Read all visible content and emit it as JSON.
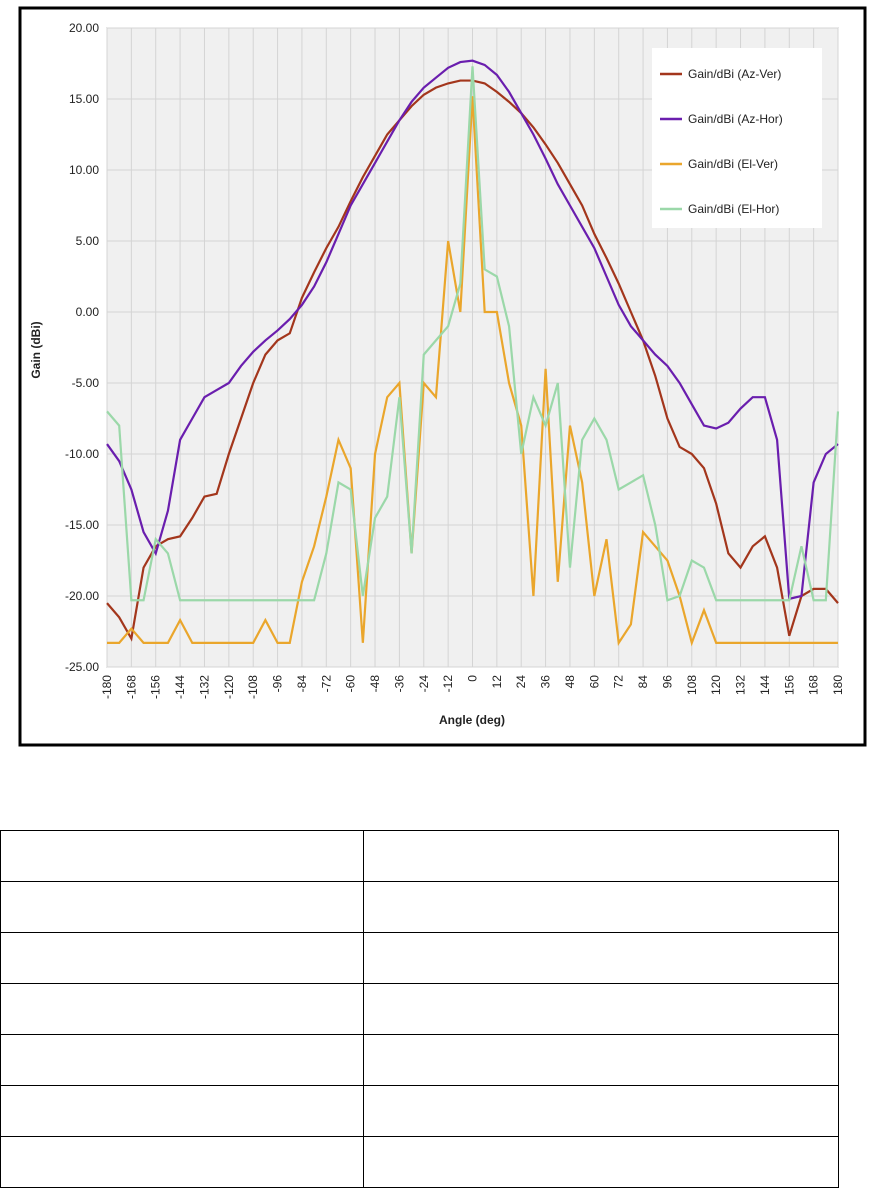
{
  "chart_data": {
    "type": "line",
    "x_label": "Angle (deg)",
    "y_label": "Gain (dBi)",
    "x": [
      -180,
      -174,
      -168,
      -162,
      -156,
      -150,
      -144,
      -138,
      -132,
      -126,
      -120,
      -114,
      -108,
      -102,
      -96,
      -90,
      -84,
      -78,
      -72,
      -66,
      -60,
      -54,
      -48,
      -42,
      -36,
      -30,
      -24,
      -18,
      -12,
      -6,
      0,
      6,
      12,
      18,
      24,
      30,
      36,
      42,
      48,
      54,
      60,
      66,
      72,
      78,
      84,
      90,
      96,
      102,
      108,
      114,
      120,
      126,
      132,
      138,
      144,
      150,
      156,
      162,
      168,
      174,
      180
    ],
    "series": [
      {
        "name": "Gain/dBi (Az-Ver)",
        "color": "#a3361c",
        "values": [
          -20.5,
          -21.5,
          -23,
          -18,
          -16.5,
          -16,
          -15.8,
          -14.5,
          -13,
          -12.8,
          -10,
          -7.5,
          -5,
          -3,
          -2,
          -1.5,
          1,
          2.8,
          4.5,
          6,
          7.8,
          9.5,
          11,
          12.5,
          13.5,
          14.5,
          15.3,
          15.8,
          16.1,
          16.3,
          16.3,
          16.1,
          15.5,
          14.8,
          14,
          13,
          11.8,
          10.5,
          9,
          7.5,
          5.5,
          3.8,
          2,
          0,
          -2,
          -4.5,
          -7.5,
          -9.5,
          -10,
          -11,
          -13.5,
          -17,
          -18,
          -16.5,
          -15.8,
          -18,
          -22.8,
          -20,
          -19.5,
          -19.5,
          -20.5
        ]
      },
      {
        "name": "Gain/dBi (Az-Hor)",
        "color": "#6a1eae",
        "values": [
          -9.3,
          -10.5,
          -12.5,
          -15.5,
          -17,
          -14,
          -9,
          -7.5,
          -6,
          -5.5,
          -5,
          -3.8,
          -2.8,
          -2,
          -1.3,
          -0.5,
          0.5,
          1.8,
          3.5,
          5.5,
          7.5,
          9,
          10.5,
          12,
          13.5,
          14.8,
          15.8,
          16.5,
          17.2,
          17.6,
          17.7,
          17.4,
          16.7,
          15.5,
          14,
          12.5,
          10.8,
          9,
          7.5,
          6,
          4.5,
          2.5,
          0.5,
          -1,
          -2,
          -3,
          -3.8,
          -5,
          -6.5,
          -8,
          -8.2,
          -7.8,
          -6.8,
          -6,
          -6,
          -9,
          -20.2,
          -20,
          -12,
          -10,
          -9.3
        ]
      },
      {
        "name": "Gain/dBi (El-Ver)",
        "color": "#eaa62c",
        "values": [
          -23.3,
          -23.3,
          -22.3,
          -23.3,
          -23.3,
          -23.3,
          -21.7,
          -23.3,
          -23.3,
          -23.3,
          -23.3,
          -23.3,
          -23.3,
          -21.7,
          -23.3,
          -23.3,
          -19,
          -16.5,
          -13,
          -9,
          -11,
          -23.3,
          -10,
          -6,
          -5,
          -17,
          -5,
          -6,
          5,
          0,
          15.2,
          0,
          0,
          -5,
          -8,
          -20,
          -4,
          -19,
          -8,
          -12,
          -20,
          -16,
          -23.3,
          -22,
          -15.5,
          -16.5,
          -17.5,
          -20,
          -23.3,
          -21,
          -23.3,
          -23.3,
          -23.3,
          -23.3,
          -23.3,
          -23.3,
          -23.3,
          -23.3,
          -23.3,
          -23.3,
          -23.3
        ]
      },
      {
        "name": "Gain/dBi (El-Hor)",
        "color": "#9bd8a9",
        "values": [
          -7,
          -8,
          -20.3,
          -20.3,
          -16,
          -17,
          -20.3,
          -20.3,
          -20.3,
          -20.3,
          -20.3,
          -20.3,
          -20.3,
          -20.3,
          -20.3,
          -20.3,
          -20.3,
          -20.3,
          -17,
          -12,
          -12.5,
          -20,
          -14.5,
          -13,
          -6,
          -17,
          -3,
          -2,
          -1,
          2,
          17.3,
          3,
          2.5,
          -1,
          -10,
          -6,
          -8,
          -5,
          -18,
          -9,
          -7.5,
          -9,
          -12.5,
          -12,
          -11.5,
          -15,
          -20.3,
          -20,
          -17.5,
          -18,
          -20.3,
          -20.3,
          -20.3,
          -20.3,
          -20.3,
          -20.3,
          -20.3,
          -16.5,
          -20.3,
          -20.3,
          -7
        ]
      }
    ],
    "xlim": [
      -180,
      180
    ],
    "xticks": [
      -180,
      -168,
      -156,
      -144,
      -132,
      -120,
      -108,
      -96,
      -84,
      -72,
      -60,
      -48,
      -36,
      -24,
      -12,
      0,
      12,
      24,
      36,
      48,
      60,
      72,
      84,
      96,
      108,
      120,
      132,
      144,
      156,
      168,
      180
    ],
    "ylim": [
      -25,
      20
    ],
    "yticks": [
      {
        "value": -25,
        "label": "-25.00"
      },
      {
        "value": -20,
        "label": "-20.00"
      },
      {
        "value": -15,
        "label": "-15.00"
      },
      {
        "value": -10,
        "label": "-10.00"
      },
      {
        "value": -5,
        "label": "-5.00"
      },
      {
        "value": 0,
        "label": "0.00"
      },
      {
        "value": 5,
        "label": "5.00"
      },
      {
        "value": 10,
        "label": "10.00"
      },
      {
        "value": 15,
        "label": "15.00"
      },
      {
        "value": 20,
        "label": "20.00"
      }
    ],
    "grid": true,
    "legend": "top-right"
  }
}
